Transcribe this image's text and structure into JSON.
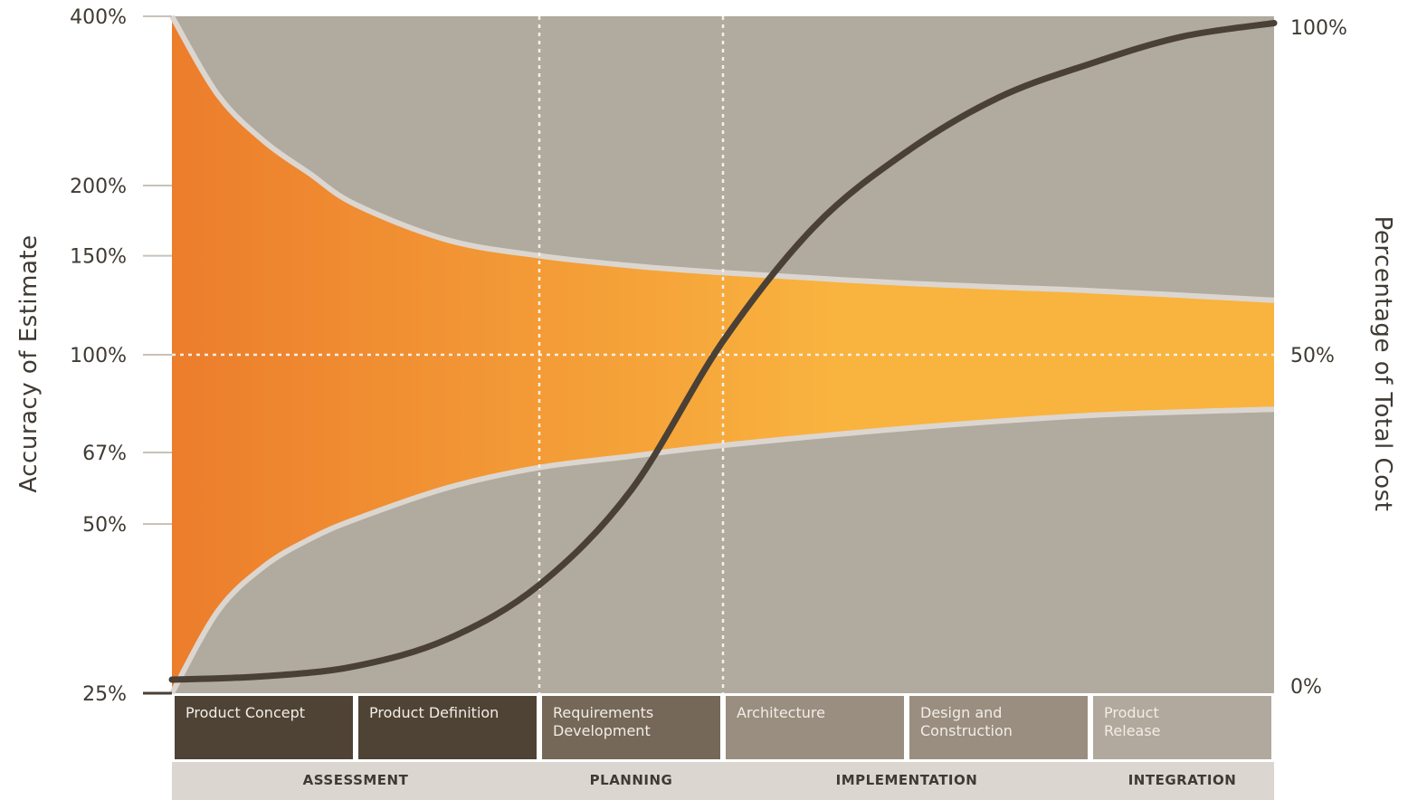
{
  "chart_data": {
    "type": "area",
    "title": "",
    "ylabel_left": "Accuracy of Estimate",
    "ylabel_right": "Percentage of Total Cost",
    "left_axis": {
      "ticks": [
        {
          "value": 4.0,
          "label": "400%"
        },
        {
          "value": 2.0,
          "label": "200%"
        },
        {
          "value": 1.5,
          "label": "150%"
        },
        {
          "value": 1.0,
          "label": "100%"
        },
        {
          "value": 0.67,
          "label": "67%"
        },
        {
          "value": 0.5,
          "label": "50%"
        },
        {
          "value": 0.25,
          "label": "25%"
        }
      ],
      "scale": "log",
      "range": [
        0.25,
        4.0
      ]
    },
    "right_axis": {
      "ticks": [
        {
          "value": 100,
          "label": "100%"
        },
        {
          "value": 50,
          "label": "50%"
        },
        {
          "value": 0,
          "label": "0%"
        }
      ],
      "range": [
        0,
        100
      ]
    },
    "phases": [
      {
        "label": "Product Concept",
        "lines": [
          "Product Concept"
        ],
        "color": "#4f4335",
        "text_color": "#f2ede6"
      },
      {
        "label": "Product Definition",
        "lines": [
          "Product Definition"
        ],
        "color": "#4f4335",
        "text_color": "#f2ede6"
      },
      {
        "label": "Requirements Development",
        "lines": [
          "Requirements",
          "Development"
        ],
        "color": "#756858",
        "text_color": "#f2ede6"
      },
      {
        "label": "Architecture",
        "lines": [
          "Architecture"
        ],
        "color": "#9a8e80",
        "text_color": "#f2ede6"
      },
      {
        "label": "Design and Construction",
        "lines": [
          "Design and",
          "Construction"
        ],
        "color": "#9a8e80",
        "text_color": "#f2ede6"
      },
      {
        "label": "Product Release",
        "lines": [
          "Product",
          "Release"
        ],
        "color": "#b1a99d",
        "text_color": "#f2ede6"
      }
    ],
    "stages": [
      {
        "label": "ASSESSMENT",
        "span": [
          0,
          2
        ]
      },
      {
        "label": "PLANNING",
        "span": [
          2,
          3
        ]
      },
      {
        "label": "IMPLEMENTATION",
        "span": [
          3,
          5
        ]
      },
      {
        "label": "INTEGRATION",
        "span": [
          5,
          6
        ]
      }
    ],
    "upper_bound": {
      "x": [
        0,
        0.25,
        0.5,
        0.75,
        1.0,
        1.5,
        2.0,
        2.5,
        3.0,
        4.0,
        5.0,
        6.0
      ],
      "values": [
        4.0,
        2.9,
        2.4,
        2.1,
        1.85,
        1.6,
        1.5,
        1.44,
        1.4,
        1.34,
        1.3,
        1.25
      ]
    },
    "lower_bound": {
      "x": [
        0,
        0.25,
        0.5,
        0.75,
        1.0,
        1.5,
        2.0,
        2.5,
        3.0,
        4.0,
        5.0,
        6.0
      ],
      "values": [
        0.25,
        0.35,
        0.42,
        0.47,
        0.51,
        0.58,
        0.63,
        0.66,
        0.69,
        0.74,
        0.78,
        0.8
      ]
    },
    "cost_curve": {
      "x": [
        0,
        0.5,
        1.0,
        1.5,
        2.0,
        2.5,
        3.0,
        3.5,
        4.0,
        4.5,
        5.0,
        5.5,
        6.0
      ],
      "values": [
        2,
        2.5,
        4,
        8,
        16,
        30,
        52,
        69,
        80,
        88,
        93,
        97,
        99
      ]
    },
    "dividers_x": [
      2,
      3
    ],
    "reference_y": 1.0,
    "colors": {
      "background": "#b1aa9e",
      "fill_left": "#ec7d2c",
      "fill_right": "#f9b33f",
      "curve": "#4a4035",
      "boundary": "#dcd6d0",
      "stage_bar": "#dcd6d0",
      "axis_text": "#3f3a33"
    }
  }
}
